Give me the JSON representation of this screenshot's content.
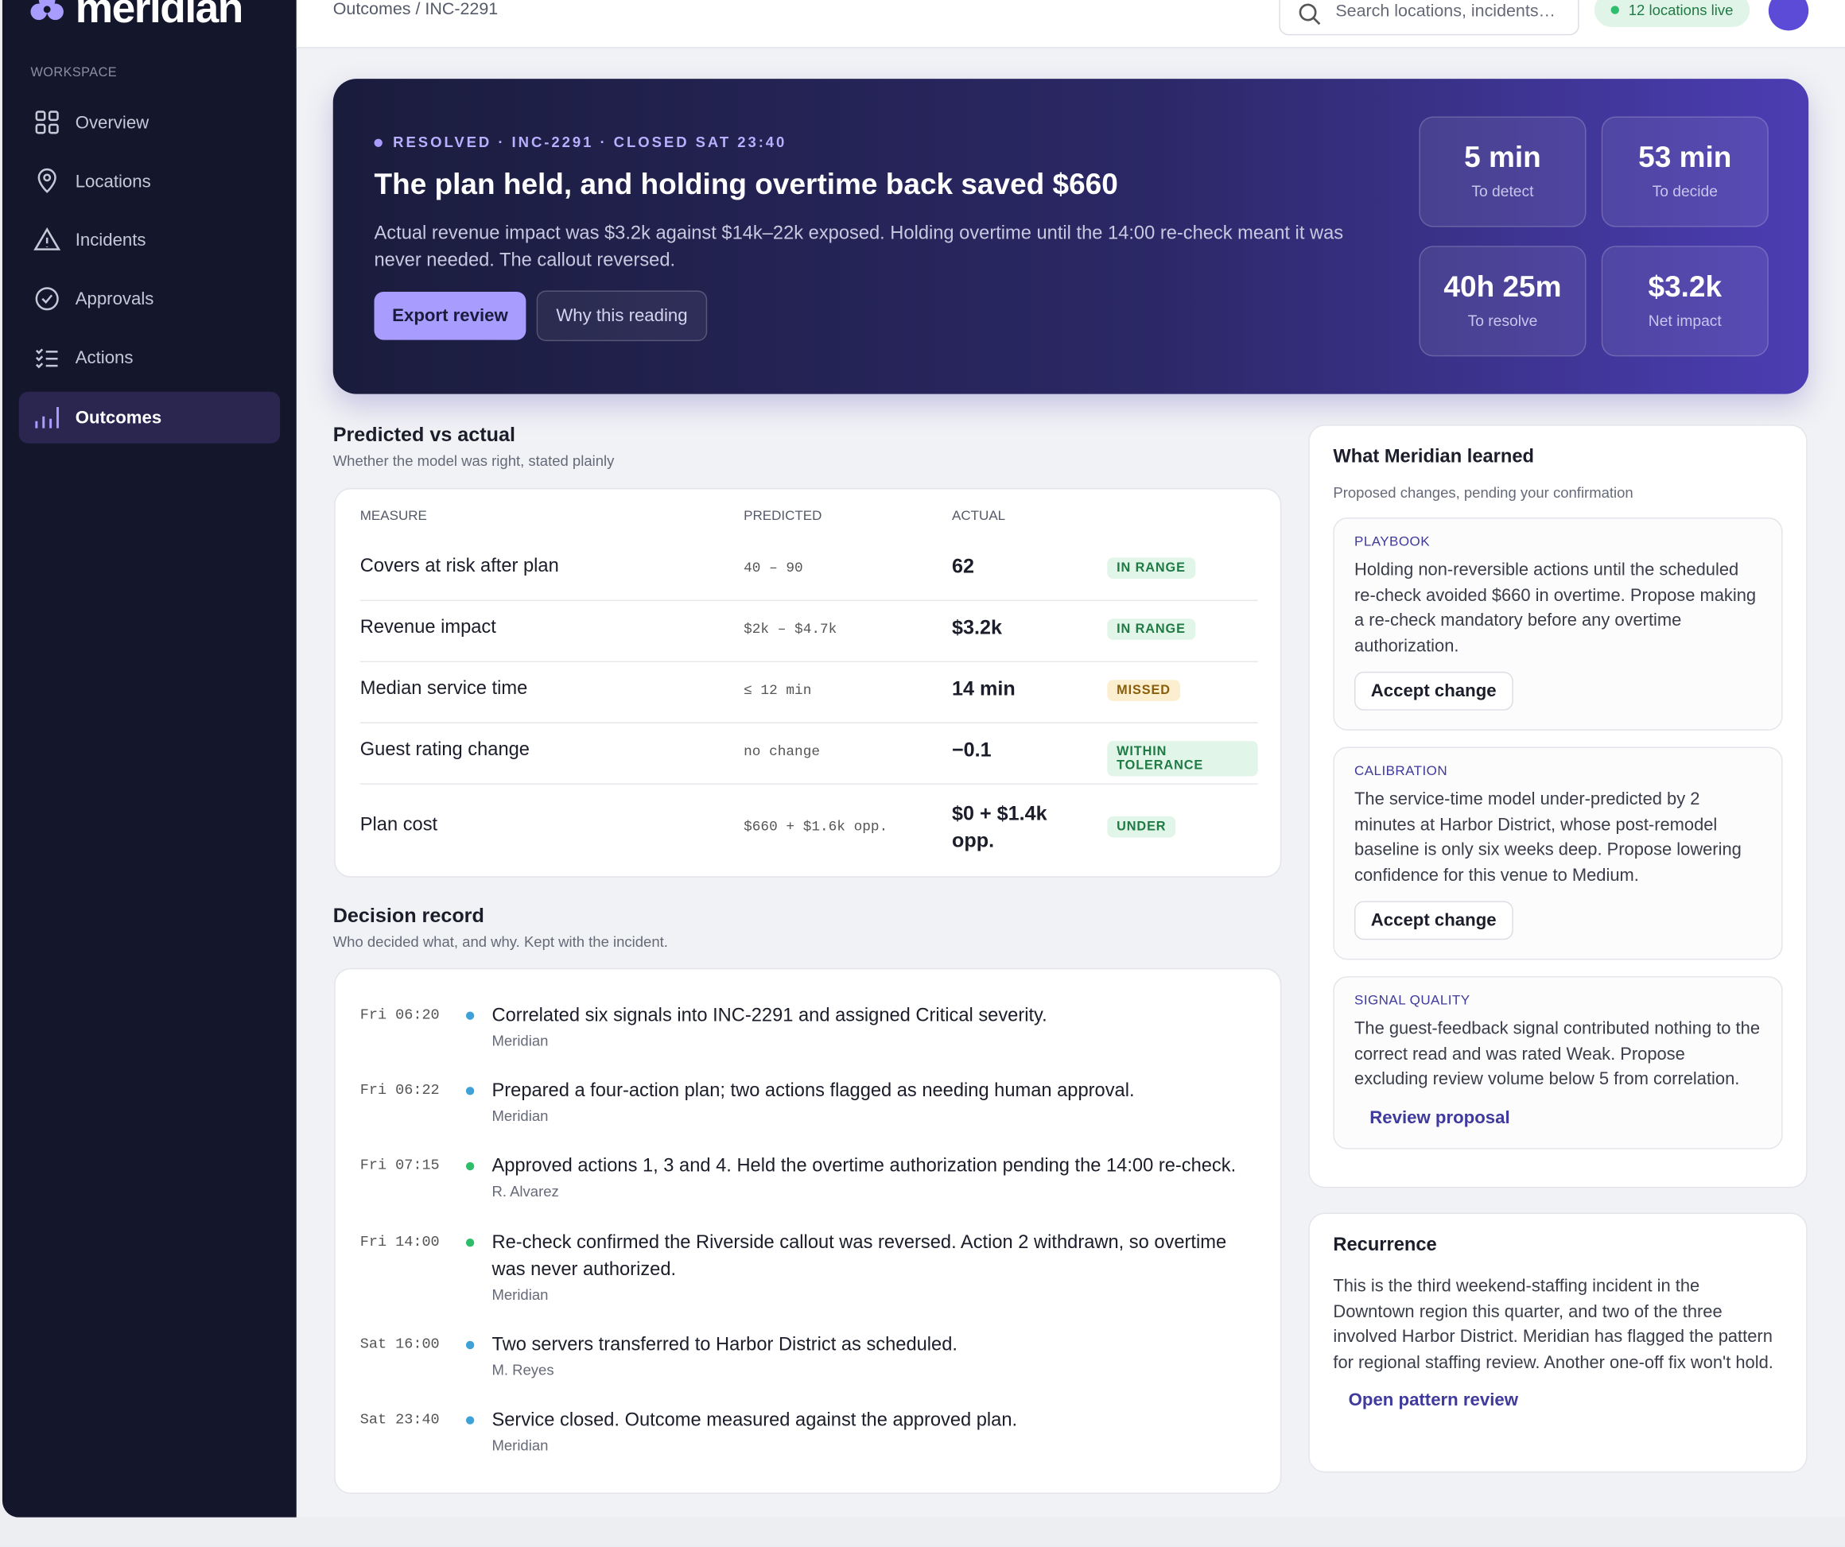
{
  "brand": "meridian",
  "sidebar": {
    "section": "WORKSPACE",
    "nav": [
      "Overview",
      "Locations",
      "Incidents",
      "Approvals",
      "Actions",
      "Outcomes"
    ]
  },
  "topbar": {
    "breadcrumb": "Outcomes / INC-2291",
    "search_placeholder": "Search locations, incidents…",
    "status": "12 locations live"
  },
  "hero": {
    "eyebrow": "RESOLVED · INC-2291 · CLOSED SAT 23:40",
    "title": "The plan held, and holding overtime back saved $660",
    "body": "Actual revenue impact was $3.2k against $14k–22k exposed. Holding overtime until the 14:00 re-check meant it was never needed. The callout reversed.",
    "buttons": [
      "Export review",
      "Why this reading"
    ],
    "stats": [
      {
        "value": "5 min",
        "label": "To detect"
      },
      {
        "value": "53 min",
        "label": "To decide"
      },
      {
        "value": "40h 25m",
        "label": "To resolve"
      },
      {
        "value": "$3.2k",
        "label": "Net impact"
      }
    ]
  },
  "predicted": {
    "title": "Predicted vs actual",
    "subtitle": "Whether the model was right, stated plainly",
    "columns": [
      "MEASURE",
      "PREDICTED",
      "ACTUAL"
    ],
    "rows": [
      {
        "measure": "Covers at risk after plan",
        "predicted": "40 – 90",
        "actual": "62",
        "status": "IN RANGE"
      },
      {
        "measure": "Revenue impact",
        "predicted": "$2k – $4.7k",
        "actual": "$3.2k",
        "status": "IN RANGE"
      },
      {
        "measure": "Median service time",
        "predicted": "≤ 12 min",
        "actual": "14 min",
        "status": "MISSED"
      },
      {
        "measure": "Guest rating change",
        "predicted": "no change",
        "actual": "−0.1",
        "status": "WITHIN TOLERANCE"
      },
      {
        "measure": "Plan cost",
        "predicted": "$660 + $1.6k opp.",
        "actual": "$0 + $1.4k opp.",
        "status": "UNDER"
      }
    ]
  },
  "decisions": {
    "title": "Decision record",
    "subtitle": "Who decided what, and why. Kept with the incident.",
    "entries": [
      {
        "time": "Fri 06:20",
        "text": "Correlated six signals into INC-2291 and assigned Critical severity.",
        "author": "Meridian"
      },
      {
        "time": "Fri 06:22",
        "text": "Prepared a four-action plan; two actions flagged as needing human approval.",
        "author": "Meridian"
      },
      {
        "time": "Fri 07:15",
        "text": "Approved actions 1, 3 and 4. Held the overtime authorization pending the 14:00 re-check.",
        "author": "R. Alvarez"
      },
      {
        "time": "Fri 14:00",
        "text": "Re-check confirmed the Riverside callout was reversed. Action 2 withdrawn, so overtime was never authorized.",
        "author": "Meridian"
      },
      {
        "time": "Sat 16:00",
        "text": "Two servers transferred to Harbor District as scheduled.",
        "author": "M. Reyes"
      },
      {
        "time": "Sat 23:40",
        "text": "Service closed. Outcome measured against the approved plan.",
        "author": "Meridian"
      }
    ]
  },
  "learned": {
    "title": "What Meridian learned",
    "subtitle": "Proposed changes, pending your confirmation",
    "cards": [
      {
        "tag": "PLAYBOOK",
        "text": "Holding non-reversible actions until the scheduled re-check avoided $660 in overtime. Propose making a re-check mandatory before any overtime authorization.",
        "action": "Accept change"
      },
      {
        "tag": "CALIBRATION",
        "text": "The service-time model under-predicted by 2 minutes at Harbor District, whose post-remodel baseline is only six weeks deep. Propose lowering confidence for this venue to Medium.",
        "action": "Accept change"
      },
      {
        "tag": "SIGNAL QUALITY",
        "text": "The guest-feedback signal contributed nothing to the correct read and was rated Weak. Propose excluding review volume below 5 from correlation.",
        "action": "Review proposal"
      }
    ]
  },
  "recurrence": {
    "title": "Recurrence",
    "text": "This is the third weekend-staffing incident in the Downtown region this quarter, and two of the three involved Harbor District. Meridian has flagged the pattern for regional staffing review. Another one-off fix won't hold.",
    "action": "Open pattern review"
  }
}
